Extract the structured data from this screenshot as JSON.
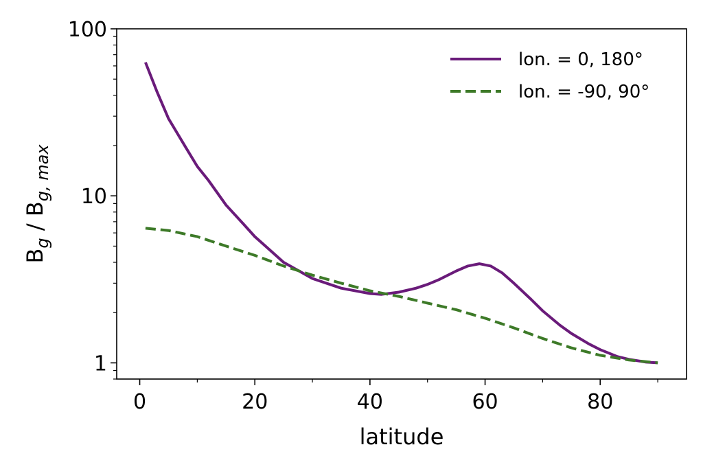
{
  "chart_data": {
    "type": "line",
    "xlabel": "latitude",
    "ylabel": {
      "base": "B",
      "sub1": "g",
      "sep": " / B",
      "sub2": "g, max"
    },
    "xlim": [
      -4,
      95
    ],
    "ylim": [
      0.8,
      100
    ],
    "yscale": "log",
    "x_ticks": [
      0,
      20,
      40,
      60,
      80
    ],
    "y_ticks": [
      1,
      10,
      100
    ],
    "y_tick_labels": [
      "1",
      "10",
      "100"
    ],
    "grid": false,
    "legend_position": "top-right",
    "series": [
      {
        "name": "lon. = 0, 180°",
        "color": "#6a1b7a",
        "style": "solid",
        "x": [
          1,
          3,
          5,
          8,
          10,
          12,
          15,
          18,
          20,
          25,
          30,
          35,
          40,
          42,
          45,
          48,
          50,
          52,
          55,
          57,
          59,
          61,
          63,
          65,
          68,
          70,
          73,
          75,
          78,
          80,
          83,
          85,
          88,
          90
        ],
        "y": [
          63,
          42,
          29,
          19.5,
          15,
          12.3,
          8.8,
          6.8,
          5.7,
          4.0,
          3.2,
          2.8,
          2.6,
          2.57,
          2.65,
          2.8,
          2.95,
          3.15,
          3.55,
          3.8,
          3.92,
          3.8,
          3.45,
          3.0,
          2.4,
          2.05,
          1.68,
          1.5,
          1.3,
          1.2,
          1.09,
          1.05,
          1.01,
          1.0
        ]
      },
      {
        "name": "lon. = -90, 90°",
        "color": "#3d7a28",
        "style": "dashed",
        "x": [
          1,
          5,
          10,
          15,
          20,
          25,
          30,
          35,
          40,
          45,
          50,
          55,
          60,
          65,
          70,
          75,
          80,
          85,
          90
        ],
        "y": [
          6.4,
          6.2,
          5.7,
          5.0,
          4.4,
          3.8,
          3.35,
          3.0,
          2.7,
          2.5,
          2.28,
          2.08,
          1.85,
          1.62,
          1.4,
          1.23,
          1.11,
          1.04,
          1.0
        ]
      }
    ]
  }
}
